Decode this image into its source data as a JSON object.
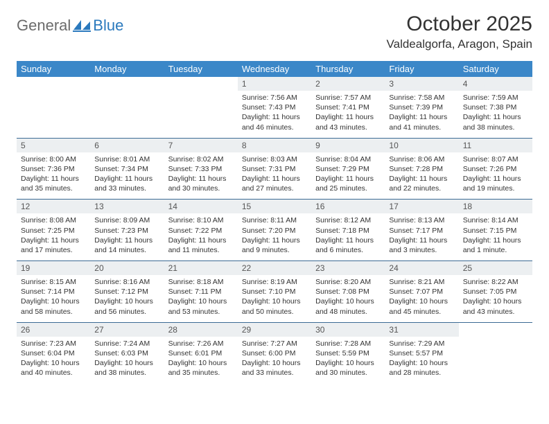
{
  "brand": {
    "part1": "General",
    "part2": "Blue"
  },
  "title": "October 2025",
  "location": "Valdealgorfa, Aragon, Spain",
  "day_headers": [
    "Sunday",
    "Monday",
    "Tuesday",
    "Wednesday",
    "Thursday",
    "Friday",
    "Saturday"
  ],
  "colors": {
    "header_bg": "#3b87c8",
    "header_text": "#ffffff",
    "daynum_bg": "#eceff1",
    "rule": "#3b6a94",
    "brand_gray": "#6b6b6b",
    "brand_blue": "#2a79bd"
  },
  "weeks": [
    [
      null,
      null,
      null,
      {
        "n": "1",
        "sunrise": "7:56 AM",
        "sunset": "7:43 PM",
        "day_h": "11",
        "day_m": "46"
      },
      {
        "n": "2",
        "sunrise": "7:57 AM",
        "sunset": "7:41 PM",
        "day_h": "11",
        "day_m": "43"
      },
      {
        "n": "3",
        "sunrise": "7:58 AM",
        "sunset": "7:39 PM",
        "day_h": "11",
        "day_m": "41"
      },
      {
        "n": "4",
        "sunrise": "7:59 AM",
        "sunset": "7:38 PM",
        "day_h": "11",
        "day_m": "38"
      }
    ],
    [
      {
        "n": "5",
        "sunrise": "8:00 AM",
        "sunset": "7:36 PM",
        "day_h": "11",
        "day_m": "35"
      },
      {
        "n": "6",
        "sunrise": "8:01 AM",
        "sunset": "7:34 PM",
        "day_h": "11",
        "day_m": "33"
      },
      {
        "n": "7",
        "sunrise": "8:02 AM",
        "sunset": "7:33 PM",
        "day_h": "11",
        "day_m": "30"
      },
      {
        "n": "8",
        "sunrise": "8:03 AM",
        "sunset": "7:31 PM",
        "day_h": "11",
        "day_m": "27"
      },
      {
        "n": "9",
        "sunrise": "8:04 AM",
        "sunset": "7:29 PM",
        "day_h": "11",
        "day_m": "25"
      },
      {
        "n": "10",
        "sunrise": "8:06 AM",
        "sunset": "7:28 PM",
        "day_h": "11",
        "day_m": "22"
      },
      {
        "n": "11",
        "sunrise": "8:07 AM",
        "sunset": "7:26 PM",
        "day_h": "11",
        "day_m": "19"
      }
    ],
    [
      {
        "n": "12",
        "sunrise": "8:08 AM",
        "sunset": "7:25 PM",
        "day_h": "11",
        "day_m": "17"
      },
      {
        "n": "13",
        "sunrise": "8:09 AM",
        "sunset": "7:23 PM",
        "day_h": "11",
        "day_m": "14"
      },
      {
        "n": "14",
        "sunrise": "8:10 AM",
        "sunset": "7:22 PM",
        "day_h": "11",
        "day_m": "11"
      },
      {
        "n": "15",
        "sunrise": "8:11 AM",
        "sunset": "7:20 PM",
        "day_h": "11",
        "day_m": "9"
      },
      {
        "n": "16",
        "sunrise": "8:12 AM",
        "sunset": "7:18 PM",
        "day_h": "11",
        "day_m": "6"
      },
      {
        "n": "17",
        "sunrise": "8:13 AM",
        "sunset": "7:17 PM",
        "day_h": "11",
        "day_m": "3"
      },
      {
        "n": "18",
        "sunrise": "8:14 AM",
        "sunset": "7:15 PM",
        "day_h": "11",
        "day_m": "1",
        "minute_word": "minute"
      }
    ],
    [
      {
        "n": "19",
        "sunrise": "8:15 AM",
        "sunset": "7:14 PM",
        "day_h": "10",
        "day_m": "58"
      },
      {
        "n": "20",
        "sunrise": "8:16 AM",
        "sunset": "7:12 PM",
        "day_h": "10",
        "day_m": "56"
      },
      {
        "n": "21",
        "sunrise": "8:18 AM",
        "sunset": "7:11 PM",
        "day_h": "10",
        "day_m": "53"
      },
      {
        "n": "22",
        "sunrise": "8:19 AM",
        "sunset": "7:10 PM",
        "day_h": "10",
        "day_m": "50"
      },
      {
        "n": "23",
        "sunrise": "8:20 AM",
        "sunset": "7:08 PM",
        "day_h": "10",
        "day_m": "48"
      },
      {
        "n": "24",
        "sunrise": "8:21 AM",
        "sunset": "7:07 PM",
        "day_h": "10",
        "day_m": "45"
      },
      {
        "n": "25",
        "sunrise": "8:22 AM",
        "sunset": "7:05 PM",
        "day_h": "10",
        "day_m": "43"
      }
    ],
    [
      {
        "n": "26",
        "sunrise": "7:23 AM",
        "sunset": "6:04 PM",
        "day_h": "10",
        "day_m": "40"
      },
      {
        "n": "27",
        "sunrise": "7:24 AM",
        "sunset": "6:03 PM",
        "day_h": "10",
        "day_m": "38"
      },
      {
        "n": "28",
        "sunrise": "7:26 AM",
        "sunset": "6:01 PM",
        "day_h": "10",
        "day_m": "35"
      },
      {
        "n": "29",
        "sunrise": "7:27 AM",
        "sunset": "6:00 PM",
        "day_h": "10",
        "day_m": "33"
      },
      {
        "n": "30",
        "sunrise": "7:28 AM",
        "sunset": "5:59 PM",
        "day_h": "10",
        "day_m": "30"
      },
      {
        "n": "31",
        "sunrise": "7:29 AM",
        "sunset": "5:57 PM",
        "day_h": "10",
        "day_m": "28"
      },
      null
    ]
  ]
}
